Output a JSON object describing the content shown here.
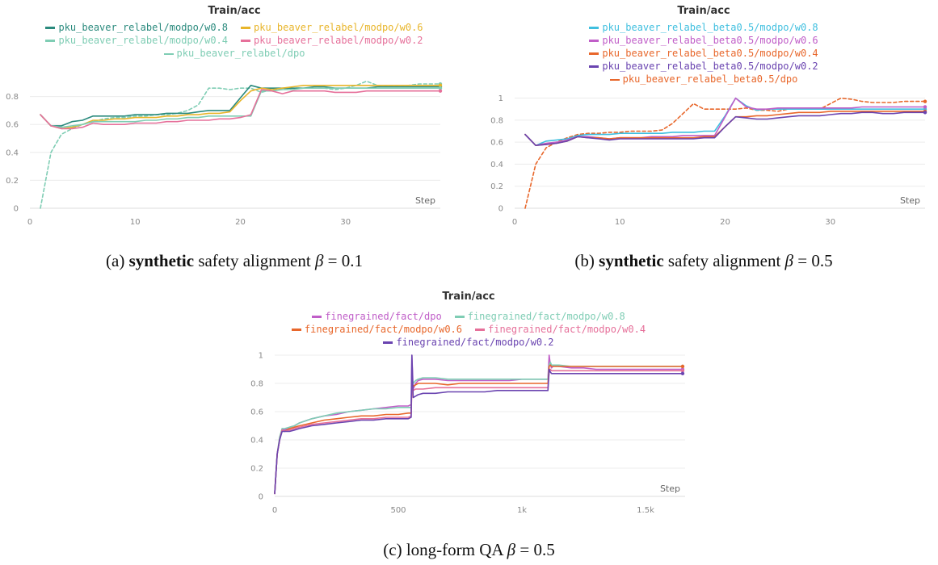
{
  "captions": [
    {
      "pre": "(a) ",
      "bold": "synthetic",
      "post": " safety alignment ",
      "sym": "β",
      "eq": " = 0.1"
    },
    {
      "pre": "(b) ",
      "bold": "synthetic",
      "post": " safety alignment ",
      "sym": "β",
      "eq": " = 0.5"
    },
    {
      "pre": "(c) long-form QA ",
      "bold": "",
      "post": "",
      "sym": "β",
      "eq": " = 0.5"
    }
  ],
  "chart_data": [
    {
      "type": "line",
      "title": "Train/acc",
      "xlabel": "Step",
      "xlim": [
        0,
        39
      ],
      "ylim": [
        0,
        1
      ],
      "xticks": [
        0,
        10,
        20,
        30
      ],
      "xtick_labels": [
        "0",
        "10",
        "20",
        "30"
      ],
      "yticks": [
        0,
        0.2,
        0.4,
        0.6,
        0.8
      ],
      "ytick_labels": [
        "0",
        "0.2",
        "0.4",
        "0.6",
        "0.8"
      ],
      "grid": true,
      "legend_position": "top",
      "legend_rows": [
        [
          0,
          1
        ],
        [
          2,
          3
        ],
        [
          4
        ]
      ],
      "x": [
        1,
        2,
        3,
        4,
        5,
        6,
        7,
        8,
        9,
        10,
        11,
        12,
        13,
        14,
        15,
        16,
        17,
        18,
        19,
        20,
        21,
        22,
        23,
        24,
        25,
        26,
        27,
        28,
        29,
        30,
        31,
        32,
        33,
        34,
        35,
        36,
        37,
        38,
        39
      ],
      "series": [
        {
          "name": "pku_beaver_relabel/modpo/w0.8",
          "color": "#2a8a7d",
          "dash": false,
          "values": [
            0.67,
            0.59,
            0.59,
            0.62,
            0.63,
            0.66,
            0.66,
            0.66,
            0.66,
            0.67,
            0.67,
            0.67,
            0.68,
            0.68,
            0.68,
            0.69,
            0.7,
            0.7,
            0.7,
            0.79,
            0.88,
            0.86,
            0.86,
            0.86,
            0.86,
            0.86,
            0.87,
            0.87,
            0.86,
            0.86,
            0.86,
            0.86,
            0.87,
            0.87,
            0.87,
            0.87,
            0.87,
            0.87,
            0.87
          ]
        },
        {
          "name": "pku_beaver_relabel/modpo/w0.6",
          "color": "#e8b52a",
          "dash": false,
          "values": [
            0.67,
            0.59,
            0.57,
            0.58,
            0.6,
            0.63,
            0.63,
            0.64,
            0.64,
            0.65,
            0.65,
            0.65,
            0.66,
            0.66,
            0.67,
            0.67,
            0.68,
            0.68,
            0.69,
            0.77,
            0.84,
            0.86,
            0.85,
            0.86,
            0.87,
            0.88,
            0.88,
            0.88,
            0.88,
            0.88,
            0.88,
            0.88,
            0.88,
            0.88,
            0.88,
            0.88,
            0.88,
            0.88,
            0.88
          ]
        },
        {
          "name": "pku_beaver_relabel/modpo/w0.4",
          "color": "#7fcdb4",
          "dash": false,
          "values": [
            0.67,
            0.59,
            0.58,
            0.59,
            0.6,
            0.62,
            0.62,
            0.62,
            0.62,
            0.62,
            0.63,
            0.63,
            0.64,
            0.64,
            0.65,
            0.65,
            0.66,
            0.66,
            0.66,
            0.66,
            0.66,
            0.84,
            0.84,
            0.85,
            0.85,
            0.86,
            0.86,
            0.86,
            0.86,
            0.86,
            0.86,
            0.86,
            0.86,
            0.86,
            0.86,
            0.86,
            0.86,
            0.86,
            0.86
          ]
        },
        {
          "name": "pku_beaver_relabel/modpo/w0.2",
          "color": "#e6709a",
          "dash": false,
          "values": [
            0.67,
            0.59,
            0.57,
            0.57,
            0.58,
            0.61,
            0.6,
            0.6,
            0.6,
            0.61,
            0.61,
            0.61,
            0.62,
            0.62,
            0.63,
            0.63,
            0.63,
            0.64,
            0.64,
            0.65,
            0.67,
            0.85,
            0.84,
            0.82,
            0.84,
            0.84,
            0.84,
            0.84,
            0.83,
            0.83,
            0.83,
            0.84,
            0.84,
            0.84,
            0.84,
            0.84,
            0.84,
            0.84,
            0.84
          ]
        },
        {
          "name": "pku_beaver_relabel/dpo",
          "color": "#7fcdb4",
          "dash": true,
          "values": [
            0.0,
            0.4,
            0.53,
            0.57,
            0.6,
            0.62,
            0.64,
            0.65,
            0.65,
            0.66,
            0.66,
            0.67,
            0.67,
            0.68,
            0.7,
            0.74,
            0.86,
            0.86,
            0.85,
            0.86,
            0.86,
            0.83,
            0.85,
            0.85,
            0.86,
            0.86,
            0.86,
            0.86,
            0.85,
            0.86,
            0.88,
            0.91,
            0.88,
            0.88,
            0.88,
            0.88,
            0.89,
            0.89,
            0.89
          ]
        }
      ]
    },
    {
      "type": "line",
      "title": "Train/acc",
      "xlabel": "Step",
      "xlim": [
        0,
        39
      ],
      "ylim": [
        0,
        1.07
      ],
      "xticks": [
        0,
        10,
        20,
        30
      ],
      "xtick_labels": [
        "0",
        "10",
        "20",
        "30"
      ],
      "yticks": [
        0,
        0.2,
        0.4,
        0.6,
        0.8,
        1
      ],
      "ytick_labels": [
        "0",
        "0.2",
        "0.4",
        "0.6",
        "0.8",
        "1"
      ],
      "grid": true,
      "legend_position": "top",
      "legend_rows": [
        [
          0
        ],
        [
          1
        ],
        [
          2
        ],
        [
          3
        ],
        [
          4
        ]
      ],
      "x": [
        1,
        2,
        3,
        4,
        5,
        6,
        7,
        8,
        9,
        10,
        11,
        12,
        13,
        14,
        15,
        16,
        17,
        18,
        19,
        20,
        21,
        22,
        23,
        24,
        25,
        26,
        27,
        28,
        29,
        30,
        31,
        32,
        33,
        34,
        35,
        36,
        37,
        38,
        39
      ],
      "series": [
        {
          "name": "pku_beaver_relabel_beta0.5/modpo/w0.8",
          "color": "#3fbfdf",
          "dash": false,
          "values": [
            0.67,
            0.57,
            0.61,
            0.62,
            0.63,
            0.66,
            0.67,
            0.67,
            0.67,
            0.68,
            0.68,
            0.68,
            0.68,
            0.68,
            0.69,
            0.69,
            0.69,
            0.7,
            0.7,
            0.84,
            1.0,
            0.93,
            0.89,
            0.9,
            0.9,
            0.9,
            0.9,
            0.9,
            0.9,
            0.9,
            0.9,
            0.9,
            0.9,
            0.9,
            0.9,
            0.9,
            0.9,
            0.9,
            0.9
          ]
        },
        {
          "name": "pku_beaver_relabel_beta0.5/modpo/w0.6",
          "color": "#c05ec8",
          "dash": false,
          "values": [
            0.67,
            0.57,
            0.59,
            0.6,
            0.62,
            0.65,
            0.65,
            0.64,
            0.63,
            0.64,
            0.64,
            0.64,
            0.65,
            0.65,
            0.65,
            0.66,
            0.66,
            0.66,
            0.66,
            0.83,
            1.0,
            0.92,
            0.9,
            0.9,
            0.91,
            0.91,
            0.91,
            0.91,
            0.91,
            0.91,
            0.91,
            0.91,
            0.92,
            0.92,
            0.92,
            0.92,
            0.92,
            0.92,
            0.92
          ]
        },
        {
          "name": "pku_beaver_relabel_beta0.5/modpo/w0.4",
          "color": "#e8672b",
          "dash": false,
          "values": [
            0.67,
            0.57,
            0.58,
            0.59,
            0.61,
            0.65,
            0.64,
            0.64,
            0.63,
            0.64,
            0.64,
            0.64,
            0.64,
            0.64,
            0.64,
            0.64,
            0.64,
            0.65,
            0.65,
            0.74,
            0.83,
            0.83,
            0.84,
            0.84,
            0.85,
            0.86,
            0.87,
            0.87,
            0.87,
            0.88,
            0.88,
            0.88,
            0.88,
            0.88,
            0.88,
            0.88,
            0.88,
            0.88,
            0.88
          ]
        },
        {
          "name": "pku_beaver_relabel_beta0.5/modpo/w0.2",
          "color": "#6a44b0",
          "dash": false,
          "values": [
            0.67,
            0.57,
            0.58,
            0.59,
            0.61,
            0.65,
            0.64,
            0.63,
            0.62,
            0.63,
            0.63,
            0.63,
            0.63,
            0.63,
            0.63,
            0.63,
            0.63,
            0.64,
            0.64,
            0.74,
            0.83,
            0.82,
            0.81,
            0.81,
            0.82,
            0.83,
            0.84,
            0.84,
            0.84,
            0.85,
            0.86,
            0.86,
            0.87,
            0.87,
            0.86,
            0.86,
            0.87,
            0.87,
            0.87
          ]
        },
        {
          "name": "pku_beaver_relabel_beta0.5/dpo",
          "color": "#e8672b",
          "dash": true,
          "values": [
            0.0,
            0.4,
            0.55,
            0.6,
            0.64,
            0.67,
            0.68,
            0.68,
            0.69,
            0.69,
            0.7,
            0.7,
            0.7,
            0.71,
            0.77,
            0.86,
            0.95,
            0.9,
            0.9,
            0.9,
            0.9,
            0.91,
            0.89,
            0.89,
            0.88,
            0.9,
            0.9,
            0.9,
            0.9,
            0.95,
            1.0,
            0.99,
            0.97,
            0.96,
            0.96,
            0.96,
            0.97,
            0.97,
            0.97
          ]
        }
      ]
    },
    {
      "type": "line",
      "title": "Train/acc",
      "xlabel": "Step",
      "xlim": [
        0,
        1660
      ],
      "ylim": [
        0,
        1.04
      ],
      "xticks": [
        0,
        500,
        1000,
        1500
      ],
      "xtick_labels": [
        "0",
        "500",
        "1k",
        "1.5k"
      ],
      "yticks": [
        0,
        0.2,
        0.4,
        0.6,
        0.8,
        1
      ],
      "ytick_labels": [
        "0",
        "0.2",
        "0.4",
        "0.6",
        "0.8",
        "1"
      ],
      "grid": true,
      "legend_position": "top",
      "legend_rows": [
        [
          0,
          1
        ],
        [
          2,
          3
        ],
        [
          4
        ]
      ],
      "x": [
        0,
        10,
        20,
        30,
        40,
        60,
        80,
        100,
        150,
        200,
        250,
        300,
        350,
        400,
        450,
        500,
        540,
        552,
        555,
        560,
        570,
        580,
        600,
        650,
        700,
        750,
        800,
        850,
        900,
        950,
        1000,
        1050,
        1100,
        1105,
        1110,
        1115,
        1120,
        1130,
        1150,
        1200,
        1250,
        1300,
        1350,
        1400,
        1450,
        1500,
        1550,
        1600,
        1650
      ],
      "series": [
        {
          "name": "finegrained/fact/dpo",
          "color": "#c05ec8",
          "dash": false,
          "values": [
            0.02,
            0.3,
            0.4,
            0.48,
            0.47,
            0.49,
            0.5,
            0.52,
            0.55,
            0.57,
            0.58,
            0.6,
            0.61,
            0.62,
            0.63,
            0.64,
            0.64,
            0.65,
            1.0,
            0.76,
            0.8,
            0.82,
            0.83,
            0.83,
            0.82,
            0.82,
            0.82,
            0.82,
            0.82,
            0.82,
            0.83,
            0.83,
            0.83,
            0.83,
            1.0,
            0.93,
            0.91,
            0.93,
            0.92,
            0.91,
            0.91,
            0.9,
            0.9,
            0.9,
            0.9,
            0.9,
            0.9,
            0.9,
            0.9
          ]
        },
        {
          "name": "finegrained/fact/modpo/w0.8",
          "color": "#7fcdb4",
          "dash": false,
          "values": [
            0.02,
            0.3,
            0.42,
            0.48,
            0.48,
            0.49,
            0.5,
            0.52,
            0.55,
            0.57,
            0.59,
            0.6,
            0.61,
            0.62,
            0.62,
            0.63,
            0.63,
            0.63,
            0.85,
            0.8,
            0.82,
            0.83,
            0.84,
            0.84,
            0.83,
            0.83,
            0.83,
            0.83,
            0.83,
            0.83,
            0.83,
            0.83,
            0.83,
            0.83,
            0.93,
            0.95,
            0.93,
            0.93,
            0.93,
            0.92,
            0.92,
            0.92,
            0.92,
            0.92,
            0.92,
            0.92,
            0.92,
            0.92,
            0.92
          ]
        },
        {
          "name": "finegrained/fact/modpo/w0.6",
          "color": "#e8672b",
          "dash": false,
          "values": [
            0.02,
            0.3,
            0.4,
            0.47,
            0.46,
            0.48,
            0.49,
            0.5,
            0.52,
            0.54,
            0.55,
            0.56,
            0.57,
            0.57,
            0.58,
            0.58,
            0.59,
            0.59,
            0.8,
            0.78,
            0.79,
            0.8,
            0.8,
            0.8,
            0.79,
            0.8,
            0.8,
            0.8,
            0.8,
            0.8,
            0.8,
            0.8,
            0.8,
            0.8,
            0.92,
            0.93,
            0.92,
            0.92,
            0.92,
            0.92,
            0.92,
            0.92,
            0.92,
            0.92,
            0.92,
            0.92,
            0.92,
            0.92,
            0.92
          ]
        },
        {
          "name": "finegrained/fact/modpo/w0.4",
          "color": "#e6709a",
          "dash": false,
          "values": [
            0.02,
            0.3,
            0.4,
            0.47,
            0.46,
            0.47,
            0.48,
            0.49,
            0.51,
            0.52,
            0.53,
            0.54,
            0.55,
            0.55,
            0.56,
            0.56,
            0.56,
            0.57,
            0.8,
            0.75,
            0.76,
            0.76,
            0.76,
            0.77,
            0.77,
            0.77,
            0.77,
            0.77,
            0.77,
            0.77,
            0.77,
            0.77,
            0.77,
            0.77,
            0.88,
            0.9,
            0.89,
            0.89,
            0.89,
            0.89,
            0.89,
            0.89,
            0.89,
            0.89,
            0.89,
            0.89,
            0.89,
            0.89,
            0.89
          ]
        },
        {
          "name": "finegrained/fact/modpo/w0.2",
          "color": "#6a44b0",
          "dash": false,
          "values": [
            0.02,
            0.3,
            0.4,
            0.46,
            0.46,
            0.46,
            0.47,
            0.48,
            0.5,
            0.51,
            0.52,
            0.53,
            0.54,
            0.54,
            0.55,
            0.55,
            0.55,
            0.56,
            1.0,
            0.7,
            0.71,
            0.72,
            0.73,
            0.73,
            0.74,
            0.74,
            0.74,
            0.74,
            0.75,
            0.75,
            0.75,
            0.75,
            0.75,
            0.75,
            0.9,
            0.88,
            0.87,
            0.87,
            0.87,
            0.87,
            0.87,
            0.87,
            0.87,
            0.87,
            0.87,
            0.87,
            0.87,
            0.87,
            0.87
          ]
        }
      ]
    }
  ]
}
